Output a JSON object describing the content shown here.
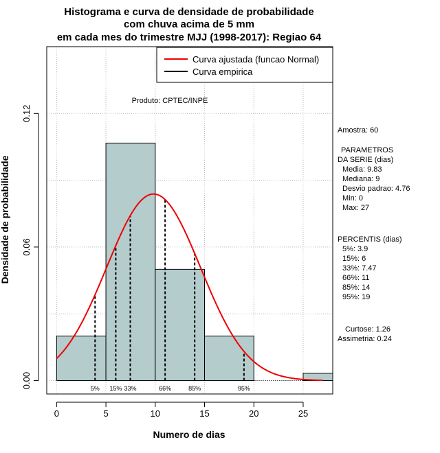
{
  "title_lines": [
    "Histograma e curva de densidade de probabilidade",
    "com chuva acima de 5 mm",
    "em cada mes do trimestre MJJ (1998-2017): Regiao 64"
  ],
  "credit": "Produto: CPTEC/INPE",
  "legend": {
    "fitted": "Curva ajustada (funcao Normal)",
    "empirical": "Curva empirica"
  },
  "stats": {
    "sample": "Amostra: 60",
    "params_header_1": "PARAMETROS",
    "params_header_2": "DA SERIE (dias)",
    "mean": "Media: 9.83",
    "median": "Mediana: 9",
    "sd": "Desvio padrao: 4.76",
    "min": "Min: 0",
    "max": "Max: 27",
    "pct_header": "PERCENTIS (dias)",
    "p5": "5%: 3.9",
    "p15": "15%: 6",
    "p33": "33%: 7.47",
    "p66": "66%: 11",
    "p85": "85%: 14",
    "p95": "95%: 19",
    "kurtosis": "Curtose: 1.26",
    "skewness": "Assimetria: 0.24"
  },
  "colors": {
    "bar_fill": "#b4cccc",
    "curve": "#ee0000",
    "grid": "#bbbbbb"
  },
  "chart_data": {
    "type": "bar",
    "title": "Histograma e curva de densidade de probabilidade com chuva acima de 5 mm em cada mes do trimestre MJJ (1998-2017): Regiao 64",
    "xlabel": "Numero de dias",
    "ylabel": "Densidade de probabilidade",
    "xlim": [
      -1,
      28
    ],
    "ylim": [
      -0.006,
      0.15
    ],
    "x_ticks": [
      0,
      5,
      10,
      15,
      20,
      25
    ],
    "y_ticks": [
      0.0,
      0.06,
      0.12
    ],
    "y_tick_labels": [
      "0.00",
      "0.06",
      "0.12"
    ],
    "grid": true,
    "bins": [
      {
        "from": 0,
        "to": 5,
        "density": 0.02
      },
      {
        "from": 5,
        "to": 10,
        "density": 0.1067
      },
      {
        "from": 10,
        "to": 15,
        "density": 0.05
      },
      {
        "from": 15,
        "to": 20,
        "density": 0.02
      },
      {
        "from": 25,
        "to": 28,
        "density": 0.0033
      }
    ],
    "normal_fit": {
      "mean": 9.83,
      "sd": 4.76,
      "x_from": 0,
      "x_to": 27
    },
    "percentiles": [
      {
        "label": "5%",
        "value": 3.9
      },
      {
        "label": "15%",
        "value": 6
      },
      {
        "label": "33%",
        "value": 7.47
      },
      {
        "label": "66%",
        "value": 11
      },
      {
        "label": "85%",
        "value": 14
      },
      {
        "label": "95%",
        "value": 19
      }
    ],
    "legend_position": "top-right"
  }
}
